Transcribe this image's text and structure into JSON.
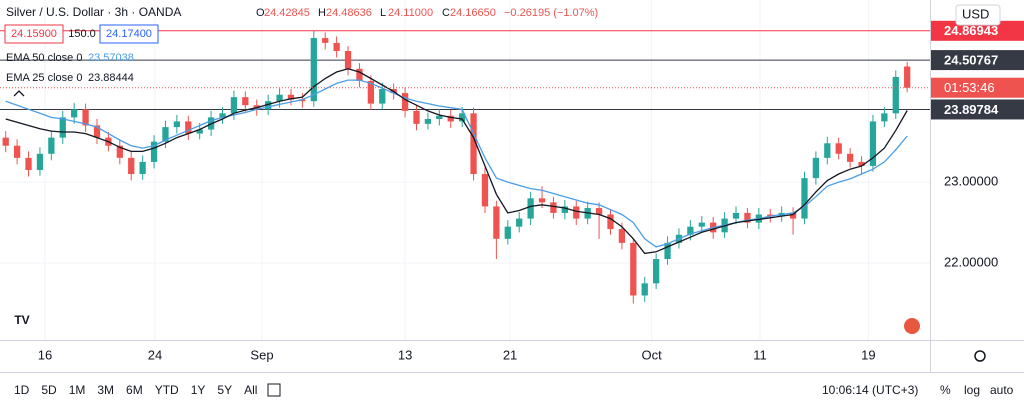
{
  "header": {
    "symbol": "Silver / U.S. Dollar · 3h · OANDA",
    "ohlc": [
      [
        "O",
        "24.42845"
      ],
      [
        "H",
        "24.48636"
      ],
      [
        "L",
        "24.11000"
      ],
      [
        "C",
        "24.16650"
      ]
    ],
    "change": "−0.26195 (−1.07%)",
    "sell": "24.15900",
    "spread": "150.0",
    "buy": "24.17400"
  },
  "chart_data": {
    "type": "candlestick",
    "currency": "USD",
    "countdown": "01:53:46",
    "up_color": "#26a69a",
    "down_color": "#ef5350",
    "xlim": [
      -0.5,
      81
    ],
    "ylim": [
      21.05,
      25.25
    ],
    "grid": true,
    "xticks": [
      {
        "value": 3.44,
        "label": "16"
      },
      {
        "value": 13.08,
        "label": "24"
      },
      {
        "value": 22.46,
        "label": "Sep"
      },
      {
        "value": 35.0,
        "label": "13"
      },
      {
        "value": 44.2,
        "label": "21"
      },
      {
        "value": 56.6,
        "label": "Oct"
      },
      {
        "value": 66.1,
        "label": "11"
      },
      {
        "value": 75.6,
        "label": "19"
      }
    ],
    "yticks": [
      {
        "value": 22,
        "label": "22.00000"
      },
      {
        "value": 23,
        "label": "23.00000"
      }
    ],
    "candles": {
      "open": [
        23.55,
        23.45,
        23.3,
        23.15,
        23.35,
        23.55,
        23.8,
        23.9,
        23.7,
        23.55,
        23.45,
        23.3,
        23.1,
        23.25,
        23.5,
        23.68,
        23.75,
        23.6,
        23.65,
        23.8,
        23.85,
        24.05,
        23.95,
        23.9,
        24.0,
        24.08,
        24.02,
        24.0,
        24.78,
        24.72,
        24.62,
        24.4,
        24.25,
        23.97,
        24.15,
        24.1,
        23.88,
        23.72,
        23.78,
        23.82,
        23.75,
        23.85,
        23.1,
        22.7,
        22.3,
        22.45,
        22.55,
        22.8,
        22.75,
        22.62,
        22.7,
        22.55,
        22.68,
        22.6,
        22.42,
        22.25,
        21.6,
        21.75,
        22.05,
        22.25,
        22.35,
        22.45,
        22.5,
        22.38,
        22.55,
        22.62,
        22.5,
        22.6,
        22.58,
        22.62,
        22.55,
        23.05,
        23.3,
        23.48,
        23.35,
        23.25,
        23.2,
        23.75,
        23.85,
        24.42845
      ],
      "high": [
        23.63,
        23.53,
        23.38,
        23.43,
        23.63,
        23.88,
        23.98,
        23.97,
        23.78,
        23.62,
        23.52,
        23.38,
        23.33,
        23.58,
        23.76,
        23.83,
        23.82,
        23.73,
        23.88,
        23.93,
        24.13,
        24.12,
        24.02,
        24.08,
        24.16,
        24.15,
        24.1,
        24.86943,
        24.85,
        24.8,
        24.68,
        24.47,
        24.32,
        24.23,
        24.22,
        24.17,
        23.95,
        23.86,
        23.9,
        23.89,
        23.93,
        23.92,
        23.18,
        22.77,
        22.53,
        22.63,
        22.88,
        22.95,
        22.82,
        22.78,
        22.77,
        22.76,
        22.75,
        22.67,
        22.5,
        22.3,
        21.83,
        22.12,
        22.33,
        22.43,
        22.53,
        22.58,
        22.57,
        22.63,
        22.7,
        22.68,
        22.68,
        22.67,
        22.7,
        22.69,
        23.13,
        23.38,
        23.56,
        23.55,
        23.42,
        23.32,
        23.83,
        23.93,
        24.38,
        24.48636
      ],
      "low": [
        23.37,
        23.22,
        23.07,
        23.08,
        23.27,
        23.47,
        23.72,
        23.62,
        23.47,
        23.38,
        23.22,
        23.02,
        23.03,
        23.17,
        23.42,
        23.6,
        23.52,
        23.53,
        23.57,
        23.72,
        23.77,
        23.87,
        23.82,
        23.83,
        23.92,
        23.95,
        23.92,
        23.93,
        24.64,
        24.54,
        24.32,
        24.17,
        23.89,
        23.9,
        24.02,
        23.8,
        23.64,
        23.65,
        23.7,
        23.67,
        23.68,
        23.02,
        22.62,
        22.05,
        22.23,
        22.38,
        22.47,
        22.68,
        22.55,
        22.54,
        22.47,
        22.48,
        22.3,
        22.35,
        22.17,
        21.5,
        21.52,
        21.68,
        21.98,
        22.18,
        22.28,
        22.38,
        22.3,
        22.31,
        22.48,
        22.43,
        22.42,
        22.5,
        22.51,
        22.35,
        22.48,
        22.97,
        23.22,
        23.28,
        23.18,
        23.1,
        23.13,
        23.68,
        23.78,
        24.11
      ],
      "close": [
        23.45,
        23.3,
        23.15,
        23.35,
        23.55,
        23.8,
        23.9,
        23.7,
        23.55,
        23.45,
        23.3,
        23.1,
        23.25,
        23.5,
        23.68,
        23.75,
        23.6,
        23.65,
        23.8,
        23.85,
        24.05,
        23.95,
        23.9,
        24.0,
        24.08,
        24.02,
        24.0,
        24.78,
        24.72,
        24.62,
        24.4,
        24.25,
        23.97,
        24.15,
        24.1,
        23.88,
        23.72,
        23.78,
        23.82,
        23.75,
        23.85,
        23.1,
        22.7,
        22.3,
        22.45,
        22.55,
        22.8,
        22.75,
        22.62,
        22.7,
        22.55,
        22.68,
        22.6,
        22.42,
        22.25,
        21.6,
        21.75,
        22.05,
        22.25,
        22.35,
        22.45,
        22.5,
        22.38,
        22.55,
        22.62,
        22.5,
        22.6,
        22.58,
        22.62,
        22.55,
        23.05,
        23.3,
        23.48,
        23.35,
        23.25,
        23.2,
        23.75,
        23.85,
        24.3,
        24.1665
      ]
    },
    "series": [
      {
        "name": "EMA 50 close 0",
        "color": "#4a9ee6",
        "values": [
          24.0,
          23.95,
          23.9,
          23.85,
          23.8,
          23.78,
          23.75,
          23.72,
          23.68,
          23.6,
          23.52,
          23.45,
          23.42,
          23.45,
          23.52,
          23.58,
          23.64,
          23.7,
          23.76,
          23.8,
          23.83,
          23.86,
          23.9,
          23.93,
          23.96,
          23.99,
          24.02,
          24.08,
          24.15,
          24.22,
          24.26,
          24.26,
          24.22,
          24.16,
          24.1,
          24.04,
          24.0,
          23.97,
          23.94,
          23.92,
          23.9,
          23.6,
          23.3,
          23.05,
          23.0,
          22.96,
          22.92,
          22.9,
          22.86,
          22.82,
          22.78,
          22.74,
          22.72,
          22.66,
          22.6,
          22.5,
          22.3,
          22.2,
          22.24,
          22.3,
          22.36,
          22.4,
          22.44,
          22.47,
          22.5,
          22.53,
          22.55,
          22.58,
          22.6,
          22.62,
          22.7,
          22.82,
          22.95,
          23.0,
          23.04,
          23.1,
          23.16,
          23.25,
          23.4,
          23.57038
        ]
      },
      {
        "name": "EMA 25 close 0",
        "color": "#131722",
        "values": [
          23.78,
          23.74,
          23.7,
          23.66,
          23.63,
          23.62,
          23.62,
          23.6,
          23.55,
          23.5,
          23.43,
          23.38,
          23.38,
          23.42,
          23.48,
          23.55,
          23.6,
          23.65,
          23.72,
          23.78,
          23.85,
          23.89,
          23.92,
          23.96,
          24.0,
          24.03,
          24.05,
          24.18,
          24.28,
          24.36,
          24.4,
          24.36,
          24.28,
          24.2,
          24.12,
          24.02,
          23.95,
          23.88,
          23.83,
          23.8,
          23.78,
          23.55,
          23.2,
          22.85,
          22.62,
          22.65,
          22.7,
          22.72,
          22.7,
          22.68,
          22.64,
          22.62,
          22.6,
          22.55,
          22.45,
          22.3,
          22.12,
          22.14,
          22.2,
          22.26,
          22.32,
          22.38,
          22.42,
          22.46,
          22.5,
          22.52,
          22.54,
          22.56,
          22.58,
          22.6,
          22.72,
          22.88,
          23.02,
          23.1,
          23.16,
          23.2,
          23.3,
          23.42,
          23.64,
          23.88444
        ]
      }
    ],
    "hlines": [
      {
        "value": 24.86943,
        "color": "#f23645"
      },
      {
        "value": 24.50767,
        "color": "#363a45"
      },
      {
        "value": 23.89784,
        "color": "#363a45"
      }
    ]
  },
  "toolbar": {
    "ranges": [
      "1D",
      "5D",
      "1M",
      "3M",
      "6M",
      "YTD",
      "1Y",
      "5Y",
      "All"
    ],
    "clock": "10:06:14 (UTC+3)",
    "options": [
      "%",
      "log",
      "auto"
    ]
  }
}
